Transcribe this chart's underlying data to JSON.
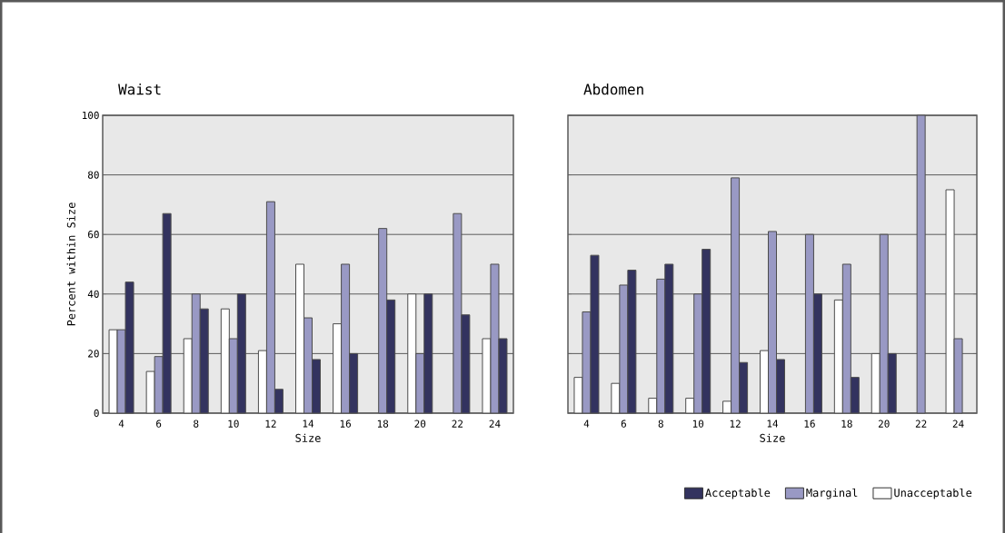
{
  "chart_data": [
    {
      "type": "bar",
      "title": "Waist",
      "xlabel": "Size",
      "ylabel": "Percent within Size",
      "categories": [
        "4",
        "6",
        "8",
        "10",
        "12",
        "14",
        "16",
        "18",
        "20",
        "22",
        "24"
      ],
      "series": [
        {
          "color": "#ffffff",
          "values": [
            28,
            14,
            25,
            35,
            21,
            50,
            30,
            null,
            40,
            null,
            25
          ]
        },
        {
          "color": "#9999c4",
          "values": [
            28,
            19,
            40,
            25,
            71,
            32,
            50,
            62,
            20,
            67,
            50
          ]
        },
        {
          "color": "#33335f",
          "values": [
            44,
            67,
            35,
            40,
            8,
            18,
            20,
            38,
            40,
            33,
            25
          ]
        }
      ],
      "ylim": [
        0,
        100
      ],
      "yticks": [
        0,
        20,
        40,
        60,
        80,
        100
      ],
      "grid": "y"
    },
    {
      "type": "bar",
      "title": "Abdomen",
      "xlabel": "Size",
      "categories": [
        "4",
        "6",
        "8",
        "10",
        "12",
        "14",
        "16",
        "18",
        "20",
        "22",
        "24"
      ],
      "series": [
        {
          "name": "Unacceptable",
          "color": "#ffffff",
          "values": [
            12,
            10,
            5,
            5,
            4,
            21,
            null,
            38,
            20,
            null,
            75
          ]
        },
        {
          "name": "Marginal",
          "color": "#9999c4",
          "values": [
            34,
            43,
            45,
            40,
            79,
            61,
            60,
            50,
            60,
            100,
            25
          ]
        },
        {
          "name": "Acceptable",
          "color": "#33335f",
          "values": [
            53,
            48,
            50,
            55,
            17,
            18,
            40,
            12,
            20,
            null,
            null
          ]
        }
      ],
      "ylim": [
        0,
        100
      ],
      "yticks": [
        0,
        20,
        40,
        60,
        80,
        100
      ],
      "grid": "y",
      "tick_labels": "x",
      "legend": "bottom right"
    }
  ]
}
